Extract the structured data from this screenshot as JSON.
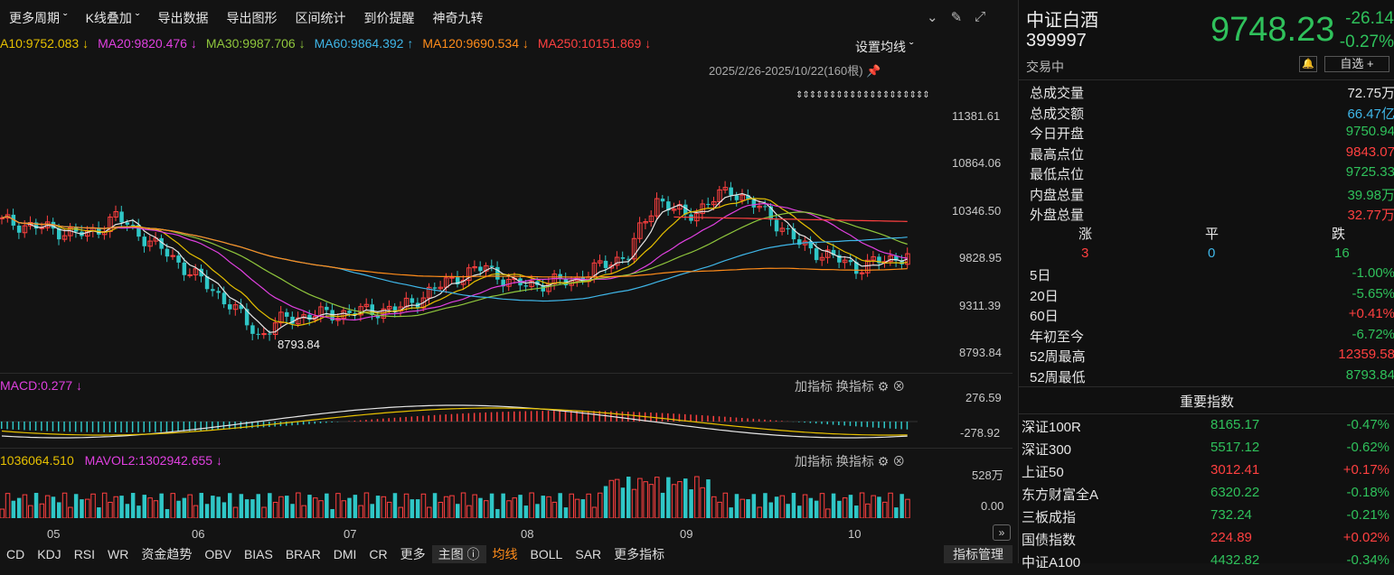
{
  "toolbar": {
    "items": [
      "更多周期 ˇ",
      "K线叠加 ˇ",
      "导出数据",
      "导出图形",
      "区间统计",
      "到价提醒",
      "神奇九转"
    ]
  },
  "ma_legend": [
    {
      "text": "A10:9752.083 ↓",
      "color": "#e6c000"
    },
    {
      "text": "MA20:9820.476 ↓",
      "color": "#e040e0"
    },
    {
      "text": "MA30:9987.706 ↓",
      "color": "#8fc63c"
    },
    {
      "text": "MA60:9864.392 ↑",
      "color": "#3fb6e8"
    },
    {
      "text": "MA120:9690.534 ↓",
      "color": "#ff8c1a"
    },
    {
      "text": "MA250:10151.869 ↓",
      "color": "#ff4040"
    }
  ],
  "set_ma_label": "设置均线 ˇ",
  "range_label": "2025/2/26-2025/10/22(160根)",
  "arrows_text": "⇕⇕⇕⇕⇕⇕⇕⇕⇕⇕⇕⇕⇕⇕⇕⇕⇕⇕⇕⇕",
  "y_axis": [
    "11381.61",
    "10864.06",
    "10346.50",
    "9828.95",
    "9311.39",
    "8793.84"
  ],
  "low_marker": "8793.84",
  "x_axis": [
    "05",
    "06",
    "07",
    "08",
    "09",
    "10"
  ],
  "macd": {
    "label": "MACD:0.277 ↓",
    "y_axis": [
      "276.59",
      "-278.92"
    ],
    "tools": [
      "加指标",
      "换指标"
    ]
  },
  "volume": {
    "label1": "1036064.510",
    "label2": "MAVOL2:1302942.655 ↓",
    "y_axis": [
      "528万",
      "0.00"
    ],
    "tools": [
      "加指标",
      "换指标"
    ]
  },
  "bottom_tabs": [
    "CD",
    "KDJ",
    "RSI",
    "WR",
    "资金趋势",
    "OBV",
    "BIAS",
    "BRAR",
    "DMI",
    "CR",
    "更多",
    "主图 ⓘ",
    "均线",
    "BOLL",
    "SAR",
    "更多指标",
    "指标管理"
  ],
  "stock": {
    "name": "中证白酒",
    "code": "399997",
    "status": "交易中",
    "price": "9748.23",
    "change": "-26.14",
    "change_pct": "-0.27%",
    "watch_label": "自选 +"
  },
  "stats": [
    {
      "label": "总成交量",
      "value": "72.75万",
      "cls": "w"
    },
    {
      "label": "总成交额",
      "value": "66.47亿",
      "cls": "c"
    },
    {
      "label": "今日开盘",
      "value": "9750.94",
      "cls": "g"
    },
    {
      "label": "最高点位",
      "value": "9843.07",
      "cls": "r"
    },
    {
      "label": "最低点位",
      "value": "9725.33",
      "cls": "g"
    },
    {
      "label": "内盘总量",
      "value": "39.98万",
      "cls": "g"
    },
    {
      "label": "外盘总量",
      "value": "32.77万",
      "cls": "r"
    }
  ],
  "breadth": {
    "headers": [
      "涨",
      "平",
      "跌"
    ],
    "values": [
      "3",
      "0",
      "16"
    ]
  },
  "periods": [
    {
      "label": "5日",
      "value": "-1.00%",
      "cls": "g"
    },
    {
      "label": "20日",
      "value": "-5.65%",
      "cls": "g"
    },
    {
      "label": "60日",
      "value": "+0.41%",
      "cls": "r"
    },
    {
      "label": "年初至今",
      "value": "-6.72%",
      "cls": "g"
    },
    {
      "label": "52周最高",
      "value": "12359.58",
      "cls": "r"
    },
    {
      "label": "52周最低",
      "value": "8793.84",
      "cls": "g"
    }
  ],
  "index_title": "重要指数",
  "indices": [
    {
      "name": "深证100R",
      "price": "8165.17",
      "pct": "-0.47%",
      "cls": "g"
    },
    {
      "name": "深证300",
      "price": "5517.12",
      "pct": "-0.62%",
      "cls": "g"
    },
    {
      "name": "上证50",
      "price": "3012.41",
      "pct": "+0.17%",
      "cls": "r"
    },
    {
      "name": "东方财富全A",
      "price": "6320.22",
      "pct": "-0.18%",
      "cls": "g"
    },
    {
      "name": "三板成指",
      "price": "732.24",
      "pct": "-0.21%",
      "cls": "g"
    },
    {
      "name": "国债指数",
      "price": "224.89",
      "pct": "+0.02%",
      "cls": "r"
    },
    {
      "name": "中证A100",
      "price": "4432.82",
      "pct": "-0.34%",
      "cls": "g"
    }
  ],
  "colors": {
    "up": "#ff4040",
    "down": "#2fc6c6",
    "ma5": "#e6e6e6",
    "ma10": "#e6c000",
    "ma20": "#e040e0",
    "ma30": "#8fc63c",
    "ma60": "#3fb6e8",
    "ma120": "#ff8c1a",
    "ma250": "#ff4040"
  }
}
